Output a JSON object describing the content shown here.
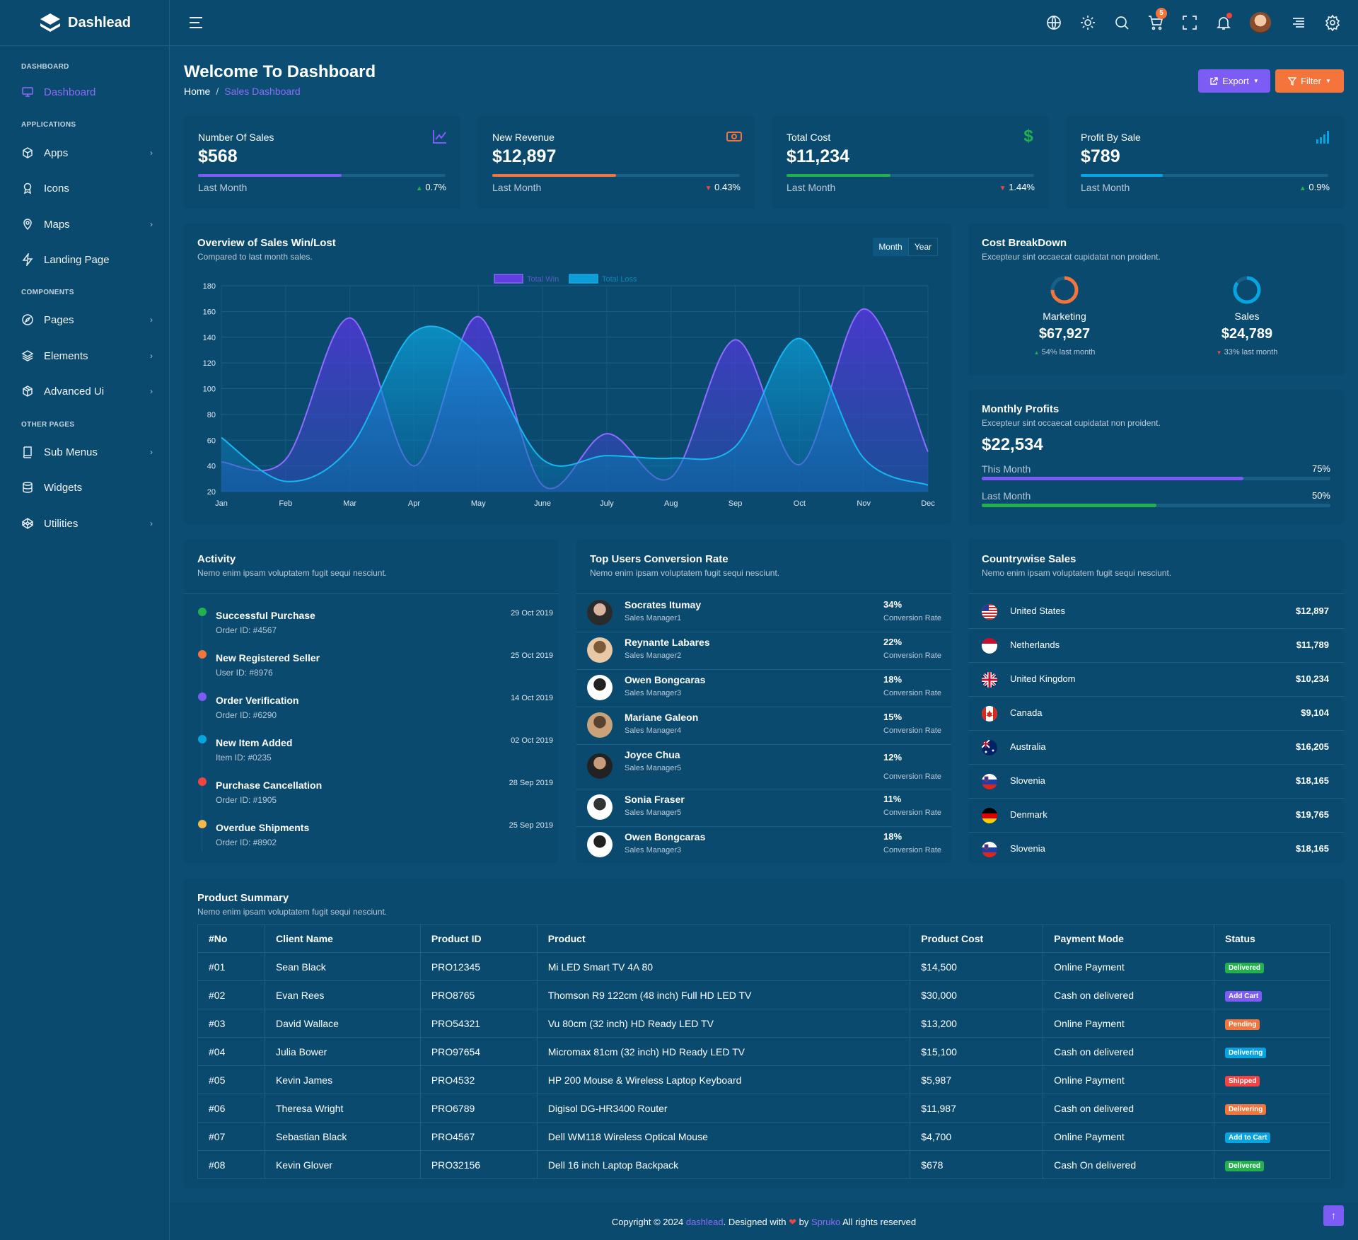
{
  "app": {
    "name": "Dashlead"
  },
  "colors": {
    "purple": "#7c5cf4",
    "orange": "#f4743b",
    "green": "#22b14c",
    "blue": "#06a4e0",
    "red": "#f34343",
    "yellow": "#f5b849"
  },
  "header": {
    "icons": [
      "menu-icon",
      "globe-icon",
      "theme-icon",
      "search-icon",
      "cart-icon",
      "fullscreen-icon",
      "bell-icon",
      "avatar",
      "sidebar-toggle-icon",
      "gear-icon"
    ],
    "cart_count": "5"
  },
  "sidebar": {
    "categories": [
      "DASHBOARD",
      "APPLICATIONS",
      "COMPONENTS",
      "OTHER PAGES"
    ],
    "items": [
      {
        "label": "Dashboard",
        "icon": "monitor-icon"
      },
      {
        "label": "Apps",
        "icon": "cube-icon"
      },
      {
        "label": "Icons",
        "icon": "award-icon"
      },
      {
        "label": "Maps",
        "icon": "map-pin-icon"
      },
      {
        "label": "Landing Page",
        "icon": "zap-icon"
      },
      {
        "label": "Pages",
        "icon": "compass-icon"
      },
      {
        "label": "Elements",
        "icon": "layers-icon"
      },
      {
        "label": "Advanced Ui",
        "icon": "package-icon"
      },
      {
        "label": "Sub Menus",
        "icon": "book-icon"
      },
      {
        "label": "Widgets",
        "icon": "database-icon"
      },
      {
        "label": "Utilities",
        "icon": "codepen-icon"
      }
    ]
  },
  "page": {
    "title": "Welcome To Dashboard",
    "breadcrumb": {
      "home": "Home",
      "separator": "/",
      "current": "Sales Dashboard"
    },
    "export_label": "Export",
    "filter_label": "Filter"
  },
  "stats": [
    {
      "label": "Number Of Sales",
      "value": "$568",
      "foot": "Last Month",
      "pct": "0.7%",
      "trend": "up",
      "fill": 0.58,
      "color": "#7c5cf4",
      "icon": "line-chart-icon"
    },
    {
      "label": "New Revenue",
      "value": "$12,897",
      "foot": "Last Month",
      "pct": "0.43%",
      "trend": "down",
      "fill": 0.5,
      "color": "#f4743b",
      "icon": "money-icon"
    },
    {
      "label": "Total Cost",
      "value": "$11,234",
      "foot": "Last Month",
      "pct": "1.44%",
      "trend": "down",
      "fill": 0.42,
      "color": "#22b14c",
      "icon": "dollar-icon"
    },
    {
      "label": "Profit By Sale",
      "value": "$789",
      "foot": "Last Month",
      "pct": "0.9%",
      "trend": "up",
      "fill": 0.33,
      "color": "#06a4e0",
      "icon": "signal-icon"
    }
  ],
  "overview": {
    "title": "Overview of Sales Win/Lost",
    "subtitle": "Compared to last month sales.",
    "toggle": [
      "Month",
      "Year"
    ]
  },
  "chart_data": {
    "type": "area",
    "categories": [
      "Jan",
      "Feb",
      "Mar",
      "Apr",
      "May",
      "June",
      "July",
      "Aug",
      "Sep",
      "Oct",
      "Nov",
      "Dec"
    ],
    "series": [
      {
        "name": "Total Win",
        "color": "#6e3cf0",
        "values": [
          43,
          45,
          155,
          40,
          156,
          25,
          65,
          31,
          138,
          41,
          162,
          51
        ]
      },
      {
        "name": "Total Loss",
        "color": "#0ea8e6",
        "values": [
          62,
          28,
          54,
          144,
          126,
          45,
          48,
          46,
          55,
          139,
          46,
          25
        ]
      }
    ],
    "ylim": [
      20,
      180
    ],
    "yticks": [
      180,
      160,
      140,
      120,
      100,
      80,
      60,
      40,
      20
    ],
    "legend": "top-center",
    "grid": true
  },
  "cost_breakdown": {
    "title": "Cost BreakDown",
    "subtitle": "Excepteur sint occaecat cupidatat non proident.",
    "items": [
      {
        "label": "Marketing",
        "value": "$67,927",
        "note": "54% last month",
        "trend": "up",
        "ring": 0.75,
        "color": "#f4743b"
      },
      {
        "label": "Sales",
        "value": "$24,789",
        "note": "33% last month",
        "trend": "down",
        "ring": 0.85,
        "color": "#06a4e0"
      }
    ]
  },
  "monthly_profits": {
    "title": "Monthly Profits",
    "subtitle": "Excepteur sint occaecat cupidatat non proident.",
    "value": "$22,534",
    "rows": [
      {
        "label": "This Month",
        "pct": "75%",
        "fill": 0.75,
        "color": "#7c5cf4"
      },
      {
        "label": "Last Month",
        "pct": "50%",
        "fill": 0.5,
        "color": "#22b14c"
      }
    ]
  },
  "activity": {
    "title": "Activity",
    "subtitle": "Nemo enim ipsam voluptatem fugit sequi nesciunt.",
    "items": [
      {
        "title": "Successful Purchase",
        "sub": "Order ID: #4567",
        "date": "29 Oct 2019",
        "color": "#22b14c"
      },
      {
        "title": "New Registered Seller",
        "sub": "User ID: #8976",
        "date": "25 Oct 2019",
        "color": "#f4743b"
      },
      {
        "title": "Order Verification",
        "sub": "Order ID: #6290",
        "date": "14 Oct 2019",
        "color": "#7c5cf4"
      },
      {
        "title": "New Item Added",
        "sub": "Item ID: #0235",
        "date": "02 Oct 2019",
        "color": "#06a4e0"
      },
      {
        "title": "Purchase Cancellation",
        "sub": "Order ID: #1905",
        "date": "28 Sep 2019",
        "color": "#f34343"
      },
      {
        "title": "Overdue Shipments",
        "sub": "Order ID: #8902",
        "date": "25 Sep 2019",
        "color": "#f5b849"
      }
    ]
  },
  "top_users": {
    "title": "Top Users Conversion Rate",
    "subtitle": "Nemo enim ipsam voluptatem fugit sequi nesciunt.",
    "rate_label": "Conversion Rate",
    "items": [
      {
        "name": "Socrates Itumay",
        "role": "Sales Manager1",
        "pct": "34%"
      },
      {
        "name": "Reynante Labares",
        "role": "Sales Manager2",
        "pct": "22%"
      },
      {
        "name": "Owen Bongcaras",
        "role": "Sales Manager3",
        "pct": "18%"
      },
      {
        "name": "Mariane Galeon",
        "role": "Sales Manager4",
        "pct": "15%"
      },
      {
        "name": "Joyce Chua",
        "role": "Sales Manager5",
        "pct": "12%"
      },
      {
        "name": "Sonia Fraser",
        "role": "Sales Manager5",
        "pct": "11%"
      },
      {
        "name": "Owen Bongcaras",
        "role": "Sales Manager3",
        "pct": "18%"
      }
    ]
  },
  "countries": {
    "title": "Countrywise Sales",
    "subtitle": "Nemo enim ipsam voluptatem fugit sequi nesciunt.",
    "items": [
      {
        "name": "United States",
        "value": "$12,897",
        "flag": "us-flag-icon"
      },
      {
        "name": "Netherlands",
        "value": "$11,789",
        "flag": "nl-flag-icon"
      },
      {
        "name": "United Kingdom",
        "value": "$10,234",
        "flag": "uk-flag-icon"
      },
      {
        "name": "Canada",
        "value": "$9,104",
        "flag": "ca-flag-icon"
      },
      {
        "name": "Australia",
        "value": "$16,205",
        "flag": "au-flag-icon"
      },
      {
        "name": "Slovenia",
        "value": "$18,165",
        "flag": "si-flag-icon"
      },
      {
        "name": "Denmark",
        "value": "$19,765",
        "flag": "de-flag-icon"
      },
      {
        "name": "Slovenia",
        "value": "$18,165",
        "flag": "si-flag-icon"
      }
    ]
  },
  "product_summary": {
    "title": "Product Summary",
    "subtitle": "Nemo enim ipsam voluptatem fugit sequi nesciunt.",
    "columns": [
      "#No",
      "Client Name",
      "Product ID",
      "Product",
      "Product Cost",
      "Payment Mode",
      "Status"
    ],
    "rows": [
      {
        "no": "#01",
        "client": "Sean Black",
        "pid": "PRO12345",
        "product": "Mi LED Smart TV 4A 80",
        "cost": "$14,500",
        "payment": "Online Payment",
        "status": "Delivered",
        "status_color": "#22b14c"
      },
      {
        "no": "#02",
        "client": "Evan Rees",
        "pid": "PRO8765",
        "product": "Thomson R9 122cm (48 inch) Full HD LED TV",
        "cost": "$30,000",
        "payment": "Cash on delivered",
        "status": "Add Cart",
        "status_color": "#7c5cf4"
      },
      {
        "no": "#03",
        "client": "David Wallace",
        "pid": "PRO54321",
        "product": "Vu 80cm (32 inch) HD Ready LED TV",
        "cost": "$13,200",
        "payment": "Online Payment",
        "status": "Pending",
        "status_color": "#f4743b"
      },
      {
        "no": "#04",
        "client": "Julia Bower",
        "pid": "PRO97654",
        "product": "Micromax 81cm (32 inch) HD Ready LED TV",
        "cost": "$15,100",
        "payment": "Cash on delivered",
        "status": "Delivering",
        "status_color": "#06a4e0"
      },
      {
        "no": "#05",
        "client": "Kevin James",
        "pid": "PRO4532",
        "product": "HP 200 Mouse & Wireless Laptop Keyboard",
        "cost": "$5,987",
        "payment": "Online Payment",
        "status": "Shipped",
        "status_color": "#f34343"
      },
      {
        "no": "#06",
        "client": "Theresa Wright",
        "pid": "PRO6789",
        "product": "Digisol DG-HR3400 Router",
        "cost": "$11,987",
        "payment": "Cash on delivered",
        "status": "Delivering",
        "status_color": "#f4743b"
      },
      {
        "no": "#07",
        "client": "Sebastian Black",
        "pid": "PRO4567",
        "product": "Dell WM118 Wireless Optical Mouse",
        "cost": "$4,700",
        "payment": "Online Payment",
        "status": "Add to Cart",
        "status_color": "#06a4e0"
      },
      {
        "no": "#08",
        "client": "Kevin Glover",
        "pid": "PRO32156",
        "product": "Dell 16 inch Laptop Backpack",
        "cost": "$678",
        "payment": "Cash On delivered",
        "status": "Delivered",
        "status_color": "#22b14c"
      }
    ]
  },
  "footer": {
    "prefix": "Copyright © 2024 ",
    "brand": "dashlead",
    "mid": ". Designed with ",
    "by": " by ",
    "designer": "Spruko",
    "suffix": " All rights reserved"
  }
}
